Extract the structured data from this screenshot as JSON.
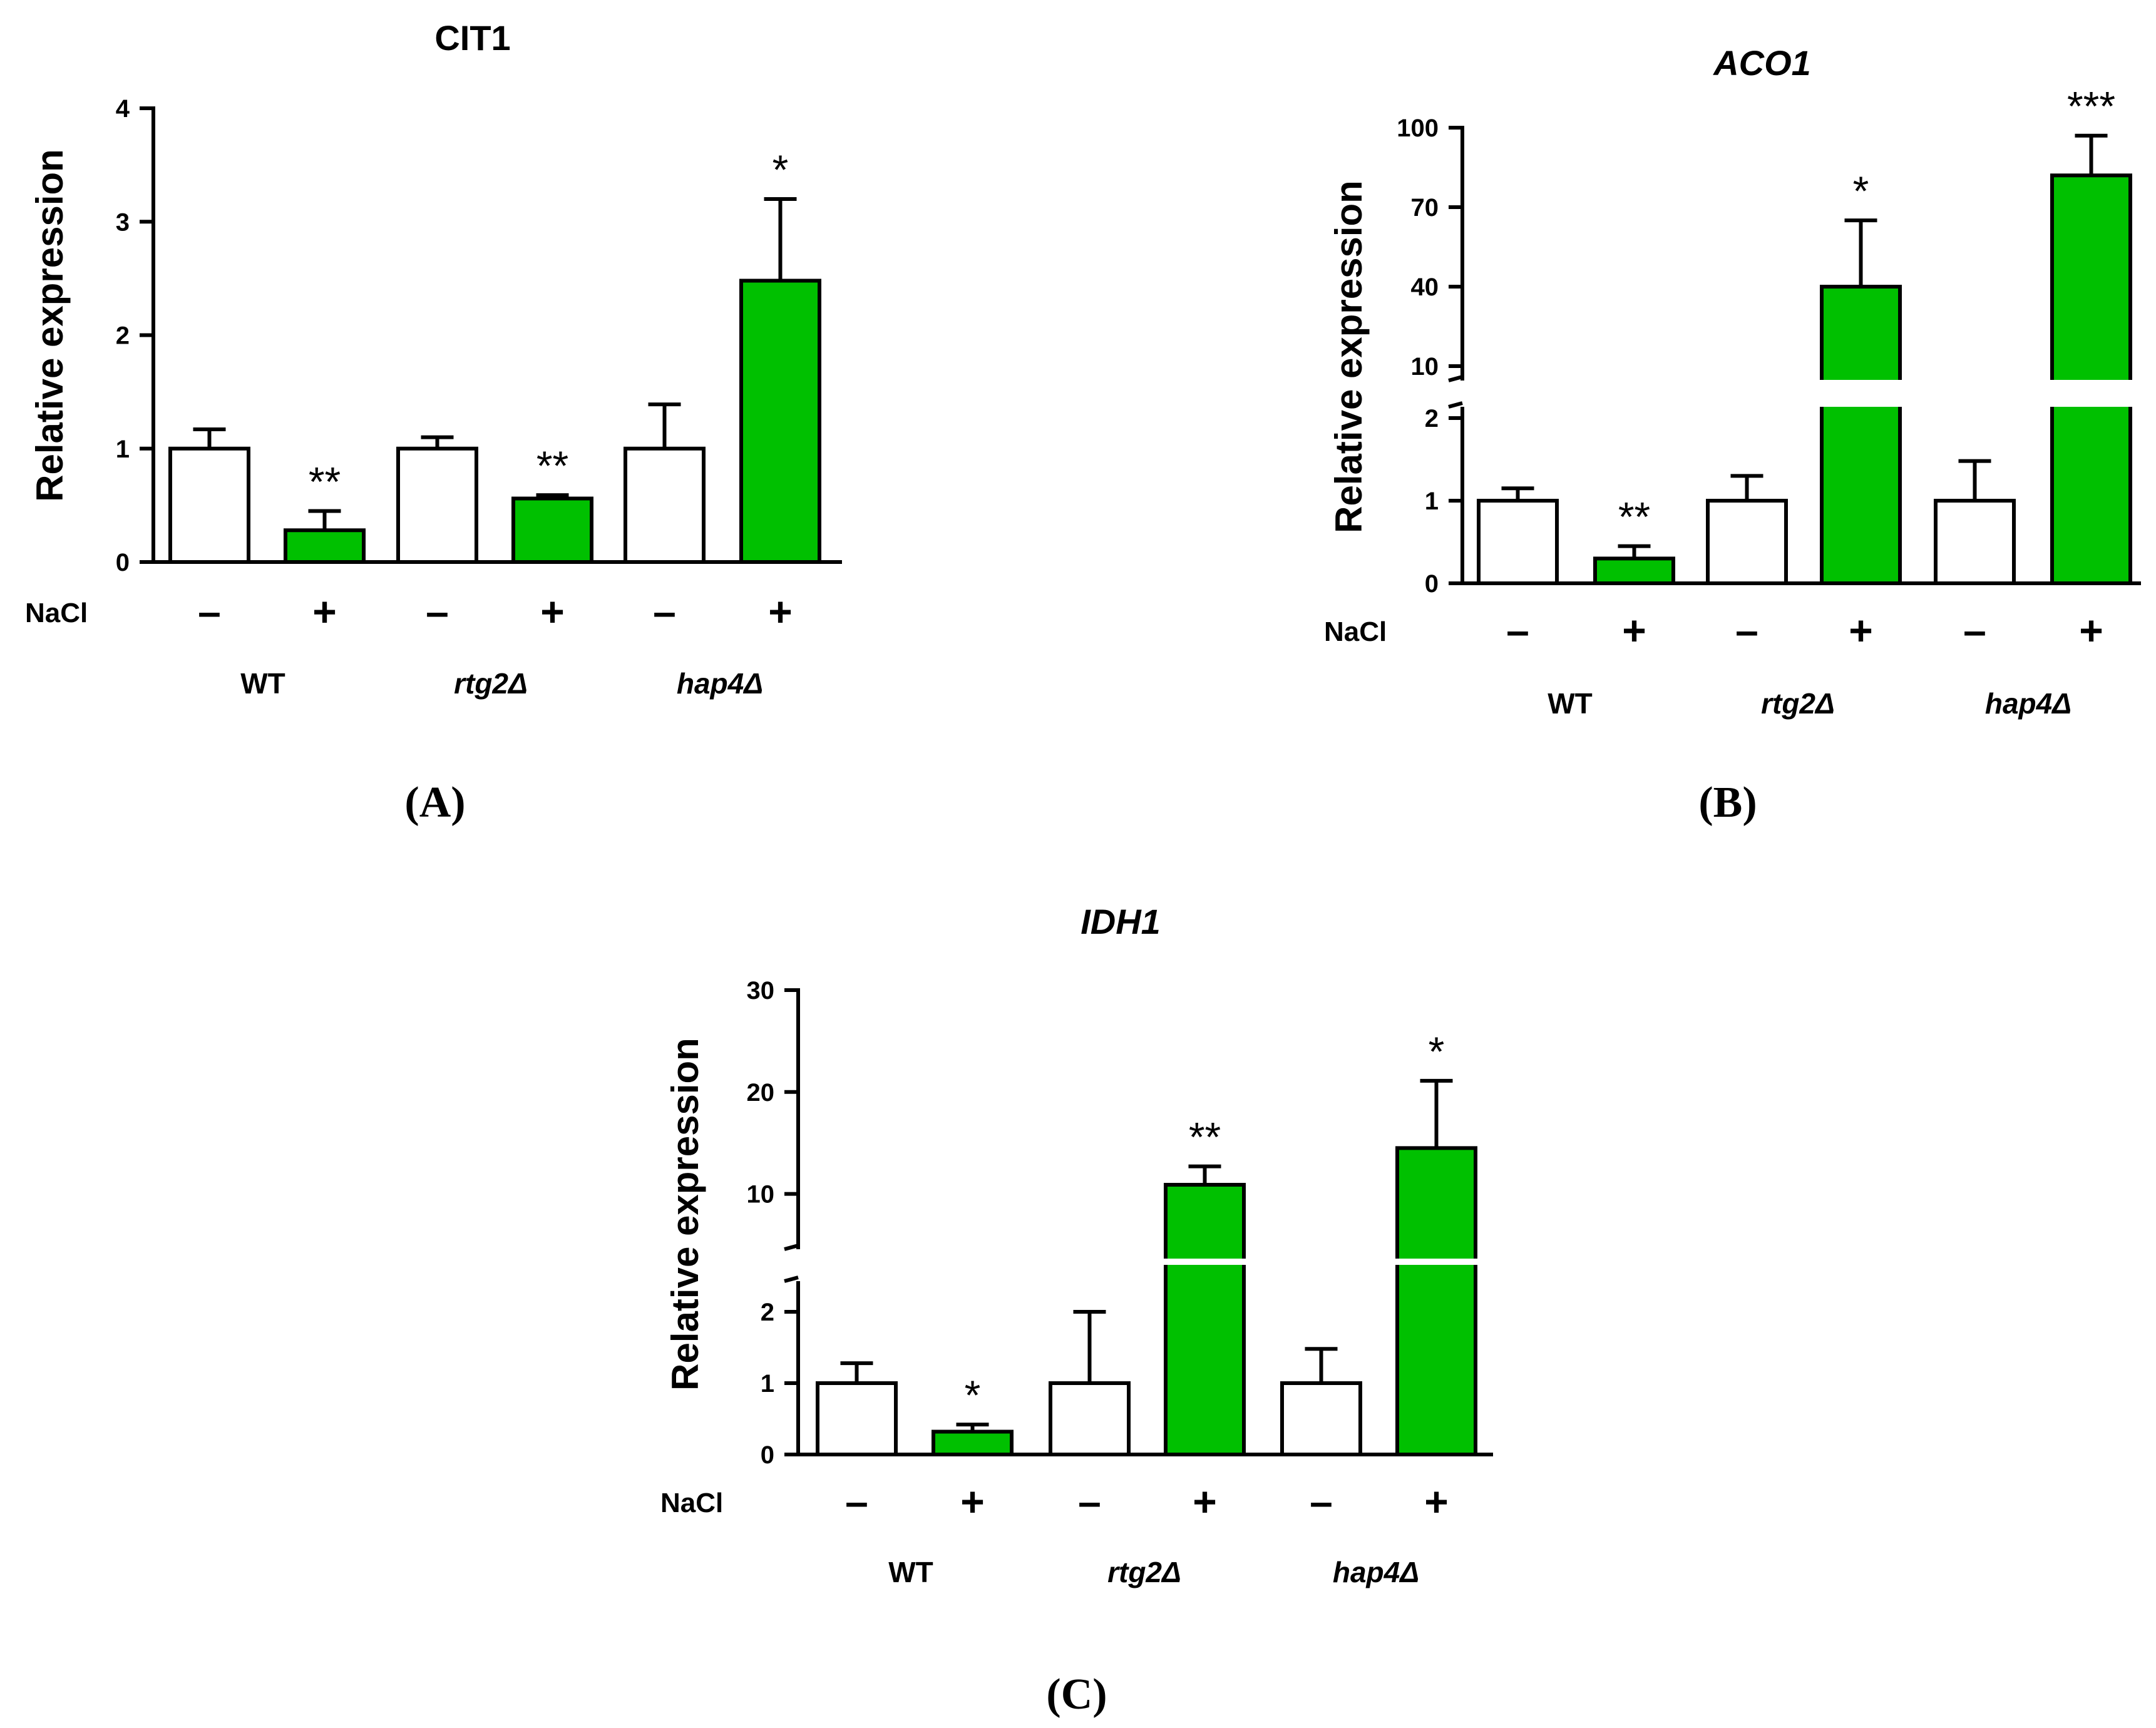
{
  "colors": {
    "treated": "#00c000",
    "control": "#ffffff",
    "stroke": "#000000"
  },
  "chart_data": [
    {
      "type": "bar",
      "panel": "(A)",
      "title": "CIT1",
      "title_italic": false,
      "ylabel": "Relative expression",
      "row_label": "NaCl",
      "ylim": [
        0,
        4
      ],
      "yticks": [
        "0",
        "1",
        "2",
        "3",
        "4"
      ],
      "broken_axis": false,
      "groups": [
        "WT",
        "rtg2Δ",
        "hap4Δ"
      ],
      "group_italic": [
        false,
        true,
        true
      ],
      "bars": [
        {
          "group": "WT",
          "nacl": "–",
          "value": 1.0,
          "error": 0.17,
          "sig": ""
        },
        {
          "group": "WT",
          "nacl": "+",
          "value": 0.28,
          "error": 0.17,
          "sig": "**"
        },
        {
          "group": "rtg2Δ",
          "nacl": "–",
          "value": 1.0,
          "error": 0.1,
          "sig": ""
        },
        {
          "group": "rtg2Δ",
          "nacl": "+",
          "value": 0.56,
          "error": 0.03,
          "sig": "**"
        },
        {
          "group": "hap4Δ",
          "nacl": "–",
          "value": 1.0,
          "error": 0.39,
          "sig": ""
        },
        {
          "group": "hap4Δ",
          "nacl": "+",
          "value": 2.48,
          "error": 0.72,
          "sig": "*"
        }
      ]
    },
    {
      "type": "bar",
      "panel": "(B)",
      "title": "ACO1",
      "title_italic": true,
      "ylabel": "Relative expression",
      "row_label": "NaCl",
      "broken_axis": true,
      "lower_ylim": [
        0,
        2
      ],
      "lower_yticks": [
        "0",
        "1",
        "2"
      ],
      "upper_ylim": [
        10,
        100
      ],
      "upper_yticks": [
        "10",
        "40",
        "70",
        "100"
      ],
      "groups": [
        "WT",
        "rtg2Δ",
        "hap4Δ"
      ],
      "group_italic": [
        false,
        true,
        true
      ],
      "bars": [
        {
          "group": "WT",
          "nacl": "–",
          "value": 1.0,
          "error": 0.15,
          "sig": ""
        },
        {
          "group": "WT",
          "nacl": "+",
          "value": 0.3,
          "error": 0.15,
          "sig": "**"
        },
        {
          "group": "rtg2Δ",
          "nacl": "–",
          "value": 1.0,
          "error": 0.3,
          "sig": ""
        },
        {
          "group": "rtg2Δ",
          "nacl": "+",
          "value": 40,
          "error": 25,
          "sig": "*"
        },
        {
          "group": "hap4Δ",
          "nacl": "–",
          "value": 1.0,
          "error": 0.48,
          "sig": ""
        },
        {
          "group": "hap4Δ",
          "nacl": "+",
          "value": 82,
          "error": 15,
          "sig": "***"
        }
      ]
    },
    {
      "type": "bar",
      "panel": "(C)",
      "title": "IDH1",
      "title_italic": true,
      "ylabel": "Relative expression",
      "row_label": "NaCl",
      "broken_axis": true,
      "lower_ylim": [
        0,
        2.5
      ],
      "lower_yticks": [
        "0",
        "1",
        "2"
      ],
      "upper_ylim": [
        5,
        30
      ],
      "upper_yticks": [
        "10",
        "20",
        "30"
      ],
      "groups": [
        "WT",
        "rtg2Δ",
        "hap4Δ"
      ],
      "group_italic": [
        false,
        true,
        true
      ],
      "bars": [
        {
          "group": "WT",
          "nacl": "–",
          "value": 1.0,
          "error": 0.28,
          "sig": ""
        },
        {
          "group": "WT",
          "nacl": "+",
          "value": 0.32,
          "error": 0.1,
          "sig": "*"
        },
        {
          "group": "rtg2Δ",
          "nacl": "–",
          "value": 1.0,
          "error": 1.0,
          "sig": ""
        },
        {
          "group": "rtg2Δ",
          "nacl": "+",
          "value": 10.9,
          "error": 1.8,
          "sig": "**"
        },
        {
          "group": "hap4Δ",
          "nacl": "–",
          "value": 1.0,
          "error": 0.48,
          "sig": ""
        },
        {
          "group": "hap4Δ",
          "nacl": "+",
          "value": 14.5,
          "error": 6.6,
          "sig": "*"
        }
      ]
    }
  ]
}
